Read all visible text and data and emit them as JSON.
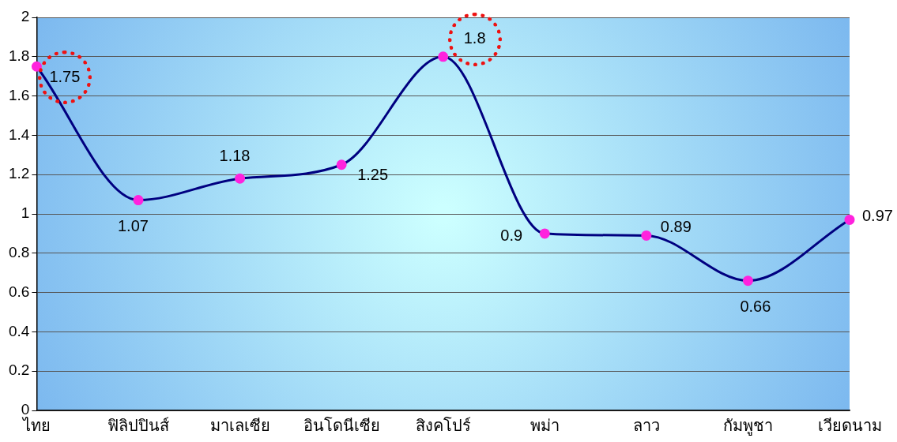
{
  "chart_data": {
    "type": "line",
    "categories": [
      "ไทย",
      "ฟิลิปปินส์",
      "มาเลเซีย",
      "อินโดนีเซีย",
      "สิงคโปร์",
      "พม่า",
      "ลาว",
      "กัมพูชา",
      "เวียดนาม"
    ],
    "series": [
      {
        "color": "#000080",
        "values": [
          1.75,
          1.07,
          1.18,
          1.25,
          1.8,
          0.9,
          0.89,
          0.66,
          0.97
        ]
      }
    ],
    "ylim": [
      0,
      2
    ],
    "yticks": [
      0,
      0.2,
      0.4,
      0.6,
      0.8,
      1,
      1.2,
      1.4,
      1.6,
      1.8,
      2
    ],
    "grid": "y",
    "legend": false,
    "marker": "circle",
    "line_style": "solid",
    "data_labels": true
  }
}
